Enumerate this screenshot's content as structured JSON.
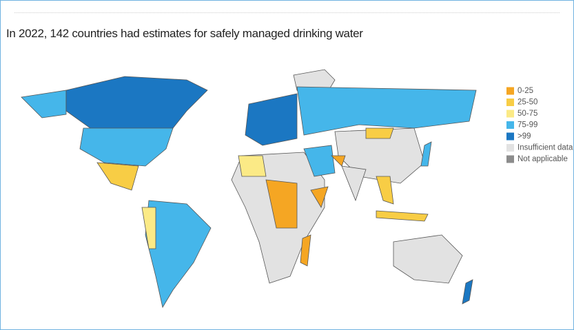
{
  "title": "In 2022, 142 countries had estimates for safely managed drinking water",
  "legend": [
    {
      "label": "0-25",
      "color": "#f5a623"
    },
    {
      "label": "25-50",
      "color": "#f8cd45"
    },
    {
      "label": "50-75",
      "color": "#fbea86"
    },
    {
      "label": "75-99",
      "color": "#45b6ea"
    },
    {
      "label": ">99",
      "color": "#1b77c2"
    },
    {
      "label": "Insufficient data",
      "color": "#e2e2e2"
    },
    {
      "label": "Not applicable",
      "color": "#8c8c8c"
    }
  ]
}
